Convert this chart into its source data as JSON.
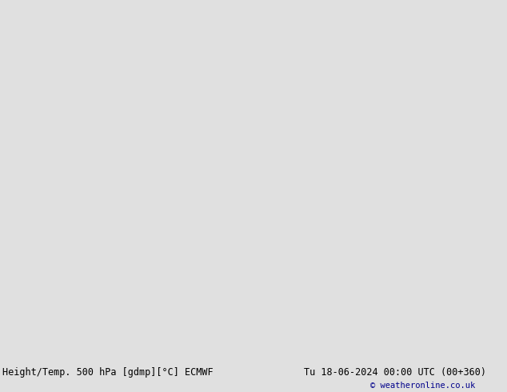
{
  "title_left": "Height/Temp. 500 hPa [gdmp][°C] ECMWF",
  "title_right": "Tu 18-06-2024 00:00 UTC (00+360)",
  "copyright": "© weatheronline.co.uk",
  "fig_width": 6.34,
  "fig_height": 4.9,
  "dpi": 100,
  "bg_color": "#e0e0e0",
  "land_green_color": "#c8e6a0",
  "land_gray_color": "#b4b4b4",
  "ocean_color": "#e0e0e0",
  "lake_color": "#e0e0e0",
  "contour_color": "#000000",
  "contour_lw": 1.1,
  "state_color": "#808080",
  "state_lw": 0.4,
  "coast_color": "#606060",
  "coast_lw": 0.5,
  "temp_orange_color": "#ff8c00",
  "temp_red_color": "#dd0000",
  "temp_green_color": "#66bb00",
  "bottom_text_color": "#000000",
  "copyright_color": "#00008b",
  "font_family": "monospace",
  "title_fontsize": 8.5,
  "copyright_fontsize": 7.5,
  "contour_label_fontsize": 7,
  "temp_label_fontsize": 6.5,
  "proj_central_lon": -100,
  "proj_central_lat": 50,
  "proj_std_parallels": [
    30,
    60
  ],
  "extent": [
    -175,
    -40,
    10,
    80
  ]
}
